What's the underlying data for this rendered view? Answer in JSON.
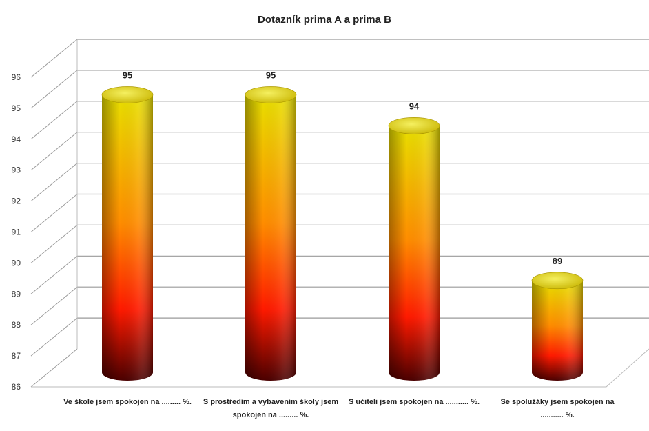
{
  "chart_data": {
    "type": "bar",
    "title": "Dotazník prima A a prima B",
    "categories": [
      "Ve škole jsem spokojen na ......... %.",
      "S prostředím a vybavením školy jsem spokojen na ......... %.",
      "S učiteli jsem spokojen na ........... %.",
      "Se spolužáky jsem spokojen na ........... %."
    ],
    "values": [
      95,
      95,
      94,
      89
    ],
    "data_labels": [
      "95",
      "95",
      "94",
      "89"
    ],
    "ylim": [
      86,
      96
    ],
    "yticks": [
      "86",
      "87",
      "88",
      "89",
      "90",
      "91",
      "92",
      "93",
      "94",
      "95",
      "96"
    ],
    "grid": true,
    "legend": "none",
    "style": "3d-cylinder",
    "colors": {
      "top": "#e8e000",
      "middle": "#ff8c00",
      "lower": "#ff1a00",
      "base": "#4a0000",
      "grid": "#9a9a9a"
    }
  }
}
